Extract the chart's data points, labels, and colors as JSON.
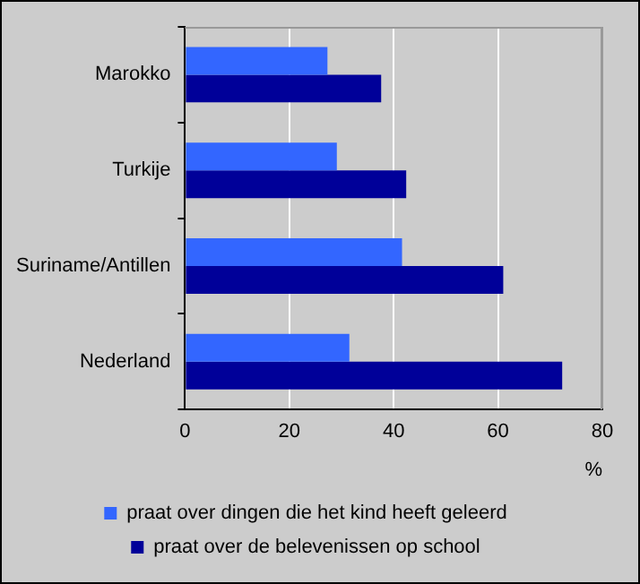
{
  "chart_data": {
    "type": "bar",
    "orientation": "horizontal",
    "xlabel": "%",
    "categories": [
      "Marokko",
      "Turkije",
      "Suriname/Antillen",
      "Nederland"
    ],
    "series": [
      {
        "name": "praat over dingen die het kind heeft geleerd",
        "color": "#3366ff",
        "values": [
          27.3,
          29.1,
          41.6,
          31.5
        ]
      },
      {
        "name": "praat over de belevenissen op school",
        "color": "#000099",
        "values": [
          37.6,
          42.4,
          61.0,
          72.3
        ]
      }
    ],
    "xlim": [
      0,
      80
    ],
    "xticks": [
      0,
      20,
      40,
      60,
      80
    ],
    "grid": "x",
    "legend": "bottom"
  }
}
